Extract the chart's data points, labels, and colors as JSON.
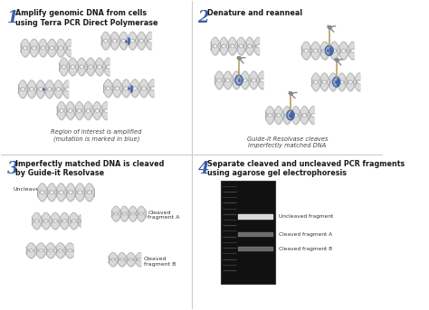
{
  "bg_color": "#ffffff",
  "step1_title": "Amplify genomic DNA from cells\nusing Terra PCR Direct Polymerase",
  "step2_title": "Denature and reanneal",
  "step3_title": "Imperfectly matched DNA is cleaved\nby Guide-it Resolvase",
  "step4_title": "Separate cleaved and uncleaved PCR fragments\nusing agarose gel electrophoresis",
  "step1_caption": "Region of interest is amplified\n(mutation is marked in blue)",
  "step2_caption": "Guide-it Resolvase cleaves\nimperfectly matched DNA",
  "step3_label_uncleaved": "Uncleaved",
  "step3_label_A": "Cleaved\nfragment A",
  "step3_label_B": "Cleaved\nfragment B",
  "step4_labels": [
    "Uncleaved fragment",
    "Cleaved fragment A",
    "Cleaved fragment B"
  ],
  "number_color": "#3a5fa8",
  "title_color": "#1a1a1a",
  "dna_fill": "#d8d8d8",
  "dna_outline": "#aaaaaa",
  "mutation_color": "#3a5fa8",
  "gel_bg": "#111111",
  "band_bright": "#d8d8d8",
  "band_dim": "#777777",
  "ladder_color": "#444444",
  "divider_color": "#cccccc",
  "caption_color": "#444444",
  "scissors_color": "#888888",
  "bubble_color": "#3a5fa8",
  "stem_color": "#b8a060"
}
